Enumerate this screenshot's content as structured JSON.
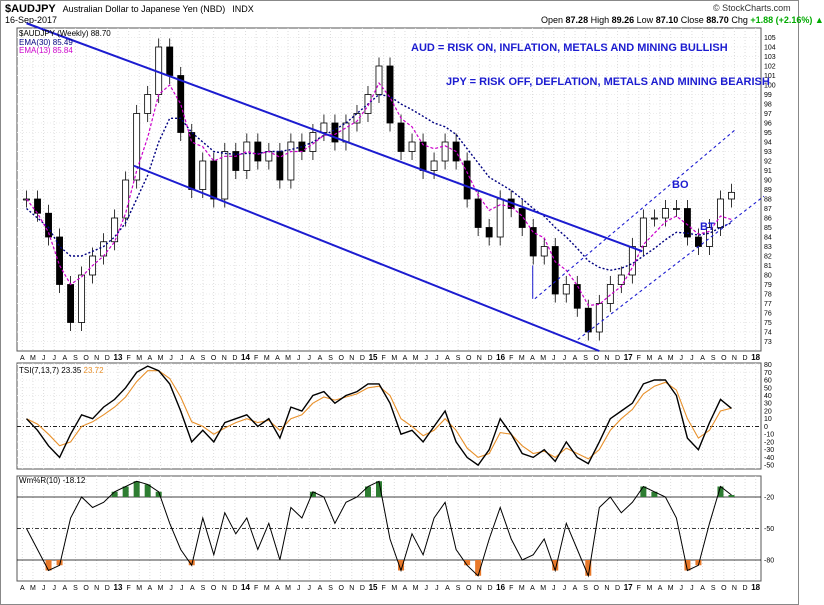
{
  "header": {
    "symbol": "$AUDJPY",
    "description": "Australian Dollar to Japanese Yen (NBD)",
    "exchange": "INDX",
    "date": "16-Sep-2017",
    "brand": "© StockCharts.com",
    "open_label": "Open",
    "open": "87.28",
    "high_label": "High",
    "high": "89.26",
    "low_label": "Low",
    "low": "87.10",
    "close_label": "Close",
    "close": "88.70",
    "chg_label": "Chg",
    "chg": "+1.88 (+2.16%) ▲"
  },
  "legends": {
    "price": "$AUDJPY (Weekly) 88.70",
    "ema30": "EMA(30) 85.49",
    "ema13": "EMA(13) 85.84",
    "tsi_name": "TSI(7,13,7)",
    "tsi_val1": "23.35",
    "tsi_val2": "23.72",
    "wr_name": "Wm%R(10)",
    "wr_val": "-18.12"
  },
  "annotations": {
    "aud": "AUD = RISK ON, INFLATION, METALS AND MINING BULLISH",
    "jpy": "JPY = RISK OFF, DEFLATION, METALS AND MINING BEARISH",
    "bo": "BO",
    "bt": "BT"
  },
  "colors": {
    "candle": "#000000",
    "ema30": "#000080",
    "ema13": "#cc00cc",
    "channel": "#1c1cd0",
    "tsi_signal": "#e8902a",
    "wr_high_fill": "#2e7d32",
    "wr_low_fill": "#e8792a"
  },
  "chart_data": [
    {
      "type": "line",
      "title": "$AUDJPY (Weekly) 88.70",
      "x_labels": [
        "A",
        "M",
        "J",
        "J",
        "A",
        "S",
        "O",
        "N",
        "D",
        "13",
        "F",
        "M",
        "A",
        "M",
        "J",
        "J",
        "A",
        "S",
        "O",
        "N",
        "D",
        "14",
        "F",
        "M",
        "A",
        "M",
        "J",
        "J",
        "A",
        "S",
        "O",
        "N",
        "D",
        "15",
        "F",
        "M",
        "A",
        "M",
        "J",
        "J",
        "A",
        "S",
        "O",
        "N",
        "D",
        "16",
        "F",
        "M",
        "A",
        "M",
        "J",
        "J",
        "A",
        "S",
        "O",
        "N",
        "D",
        "17",
        "F",
        "M",
        "A",
        "M",
        "J",
        "J",
        "A",
        "S",
        "O",
        "N",
        "D",
        "18"
      ],
      "ylim": [
        72,
        106
      ],
      "y_ticks": [
        73,
        74,
        75,
        76,
        77,
        78,
        79,
        80,
        81,
        82,
        83,
        84,
        85,
        86,
        87,
        88,
        89,
        90,
        91,
        92,
        93,
        94,
        95,
        96,
        97,
        98,
        99,
        100,
        101,
        102,
        103,
        104,
        105
      ],
      "series": [
        {
          "name": "$AUDJPY",
          "values": [
            88,
            86.5,
            84,
            79,
            75,
            80,
            82,
            83.5,
            86,
            90,
            97,
            99,
            104,
            101,
            95,
            89,
            92,
            88,
            93,
            91,
            94,
            92,
            93,
            90,
            94,
            93,
            95,
            96,
            94,
            96,
            97,
            99,
            102,
            96,
            93,
            94,
            91,
            92,
            94,
            92,
            88,
            85,
            84,
            88,
            87,
            85,
            82,
            83,
            78,
            79,
            76.5,
            74,
            77,
            79,
            80,
            83,
            86,
            86,
            87,
            87,
            84,
            83,
            85,
            88,
            88.7
          ]
        },
        {
          "name": "EMA(30)",
          "values": [
            87,
            86,
            85,
            83,
            82,
            82,
            82.5,
            83,
            84,
            85.5,
            88,
            90.5,
            94,
            96.5,
            96.5,
            95,
            94,
            93,
            92.8,
            92.7,
            92.8,
            92.8,
            93,
            93,
            93.2,
            93.5,
            94,
            94.7,
            95.3,
            96,
            97,
            98,
            99,
            98.8,
            98,
            97.4,
            96.7,
            96,
            95.6,
            94.8,
            93.3,
            91.8,
            90.3,
            89.6,
            88.9,
            88,
            87,
            86.2,
            85,
            84,
            82.8,
            81.5,
            80.8,
            80.5,
            80.7,
            81.2,
            82,
            82.8,
            83.7,
            84.5,
            84.4,
            84.2,
            84.4,
            85,
            85.49
          ]
        },
        {
          "name": "EMA(13)",
          "values": [
            88,
            86.5,
            84.5,
            81,
            79,
            79.8,
            81,
            82,
            83.5,
            86.5,
            91,
            94.5,
            99,
            100,
            98,
            94,
            93.5,
            92,
            92.5,
            92.5,
            93,
            92.7,
            93,
            92.4,
            93,
            93,
            93.8,
            94.7,
            94.8,
            95.5,
            96.2,
            97.8,
            100.2,
            98.7,
            96.5,
            95.6,
            93.7,
            93.3,
            93.6,
            93,
            90.8,
            88.4,
            86.8,
            87.4,
            87.2,
            86.2,
            84.5,
            83.9,
            81.4,
            80.5,
            78.9,
            76.8,
            76.9,
            77.9,
            78.8,
            80.8,
            83.2,
            84.4,
            85.6,
            86.2,
            85.3,
            84.3,
            84.6,
            86.2,
            85.84
          ]
        }
      ],
      "annotations": [
        "AUD = RISK ON, INFLATION, METALS AND MINING BULLISH",
        "JPY = RISK OFF, DEFLATION, METALS AND MINING BEARISH",
        "BO",
        "BT"
      ]
    },
    {
      "type": "line",
      "title": "TSI(7,13,7) 23.35 23.72",
      "ylim": [
        -55,
        82
      ],
      "y_ticks": [
        -50,
        -40,
        -30,
        -20,
        -10,
        0,
        10,
        20,
        30,
        40,
        50,
        60,
        70,
        80
      ],
      "series": [
        {
          "name": "TSI",
          "values": [
            10,
            -5,
            -25,
            -40,
            -10,
            15,
            10,
            25,
            35,
            50,
            70,
            78,
            72,
            55,
            20,
            -20,
            -5,
            -20,
            5,
            10,
            15,
            0,
            10,
            -15,
            25,
            20,
            40,
            45,
            30,
            40,
            45,
            55,
            55,
            30,
            -10,
            -5,
            -20,
            0,
            20,
            -20,
            -40,
            -50,
            -30,
            10,
            -10,
            -35,
            -40,
            -30,
            -45,
            -20,
            -40,
            -48,
            -20,
            10,
            20,
            30,
            55,
            60,
            60,
            40,
            -15,
            -30,
            5,
            35,
            23.35
          ]
        },
        {
          "name": "Signal",
          "values": [
            10,
            3,
            -10,
            -25,
            -20,
            0,
            6,
            15,
            25,
            38,
            58,
            72,
            72,
            62,
            38,
            6,
            0,
            -10,
            -2,
            5,
            10,
            5,
            8,
            -5,
            10,
            15,
            30,
            38,
            34,
            38,
            42,
            50,
            52,
            40,
            10,
            0,
            -12,
            -5,
            10,
            -5,
            -28,
            -40,
            -35,
            -8,
            -10,
            -25,
            -35,
            -32,
            -40,
            -28,
            -35,
            -42,
            -30,
            -5,
            10,
            22,
            42,
            52,
            57,
            47,
            10,
            -15,
            -5,
            20,
            23.72
          ]
        }
      ]
    },
    {
      "type": "line",
      "title": "Wm%R(10) -18.12",
      "ylim": [
        -100,
        0
      ],
      "y_ticks": [
        -20,
        -50,
        -80
      ],
      "series": [
        {
          "name": "Wm%R(10)",
          "values": [
            -50,
            -70,
            -90,
            -85,
            -40,
            -20,
            -30,
            -25,
            -15,
            -10,
            -5,
            -8,
            -15,
            -45,
            -70,
            -85,
            -40,
            -75,
            -35,
            -55,
            -40,
            -70,
            -45,
            -80,
            -30,
            -40,
            -15,
            -20,
            -45,
            -25,
            -20,
            -10,
            -5,
            -60,
            -90,
            -55,
            -75,
            -40,
            -25,
            -70,
            -85,
            -95,
            -60,
            -30,
            -60,
            -80,
            -75,
            -60,
            -90,
            -45,
            -70,
            -95,
            -30,
            -20,
            -35,
            -25,
            -10,
            -15,
            -20,
            -40,
            -90,
            -85,
            -45,
            -10,
            -18.12
          ]
        }
      ]
    }
  ]
}
